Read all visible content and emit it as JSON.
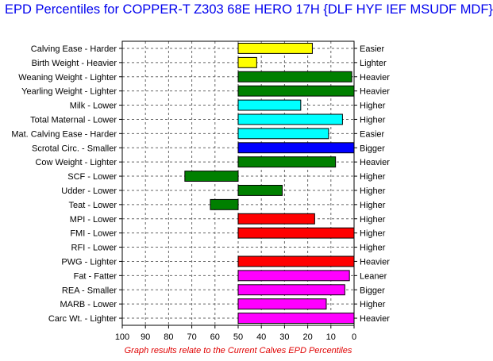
{
  "title": "EPD Percentiles for COPPER-T Z303 68E HERO 17H {DLF HYF IEF MSUDF MDF}",
  "footnote": "Graph results relate to the Current Calves EPD Percentiles",
  "chart_data": {
    "type": "bar",
    "orientation": "horizontal",
    "title": "EPD Percentiles for COPPER-T Z303 68E HERO 17H {DLF HYF IEF MSUDF MDF}",
    "xlabel": "",
    "ylabel": "",
    "xlim": [
      100,
      0
    ],
    "baseline": 50,
    "x_ticks": [
      "100",
      "90",
      "80",
      "70",
      "60",
      "50",
      "40",
      "30",
      "20",
      "10",
      "0"
    ],
    "grid": true,
    "categories": [
      "Calving Ease - Harder",
      "Birth Weight - Heavier",
      "Weaning Weight - Lighter",
      "Yearling Weight - Lighter",
      "Milk - Lower",
      "Total Maternal - Lower",
      "Mat. Calving Ease - Harder",
      "Scrotal Circ. - Smaller",
      "Cow Weight - Lighter",
      "SCF - Lower",
      "Udder - Lower",
      "Teat - Lower",
      "MPI - Lower",
      "FMI - Lower",
      "RFI - Lower",
      "PWG - Lighter",
      "Fat - Fatter",
      "REA - Smaller",
      "MARB - Lower",
      "Carc Wt. - Lighter"
    ],
    "right_labels": [
      "Easier",
      "Lighter",
      "Heavier",
      "Heavier",
      "Higher",
      "Higher",
      "Easier",
      "Bigger",
      "Heavier",
      "Higher",
      "Higher",
      "Higher",
      "Higher",
      "Higher",
      "Higher",
      "Heavier",
      "Leaner",
      "Bigger",
      "Higher",
      "Heavier"
    ],
    "values": [
      18,
      42,
      1,
      0,
      23,
      5,
      11,
      0,
      8,
      73,
      31,
      62,
      17,
      0,
      null,
      0,
      2,
      4,
      12,
      0
    ],
    "colors": [
      "#ffff00",
      "#ffff00",
      "#008000",
      "#008000",
      "#00ffff",
      "#00ffff",
      "#00ffff",
      "#0000ff",
      "#008000",
      "#008000",
      "#008000",
      "#008000",
      "#ff0000",
      "#ff0000",
      "#ff0000",
      "#ff0000",
      "#ff00ff",
      "#ff00ff",
      "#ff00ff",
      "#ff00ff"
    ]
  }
}
